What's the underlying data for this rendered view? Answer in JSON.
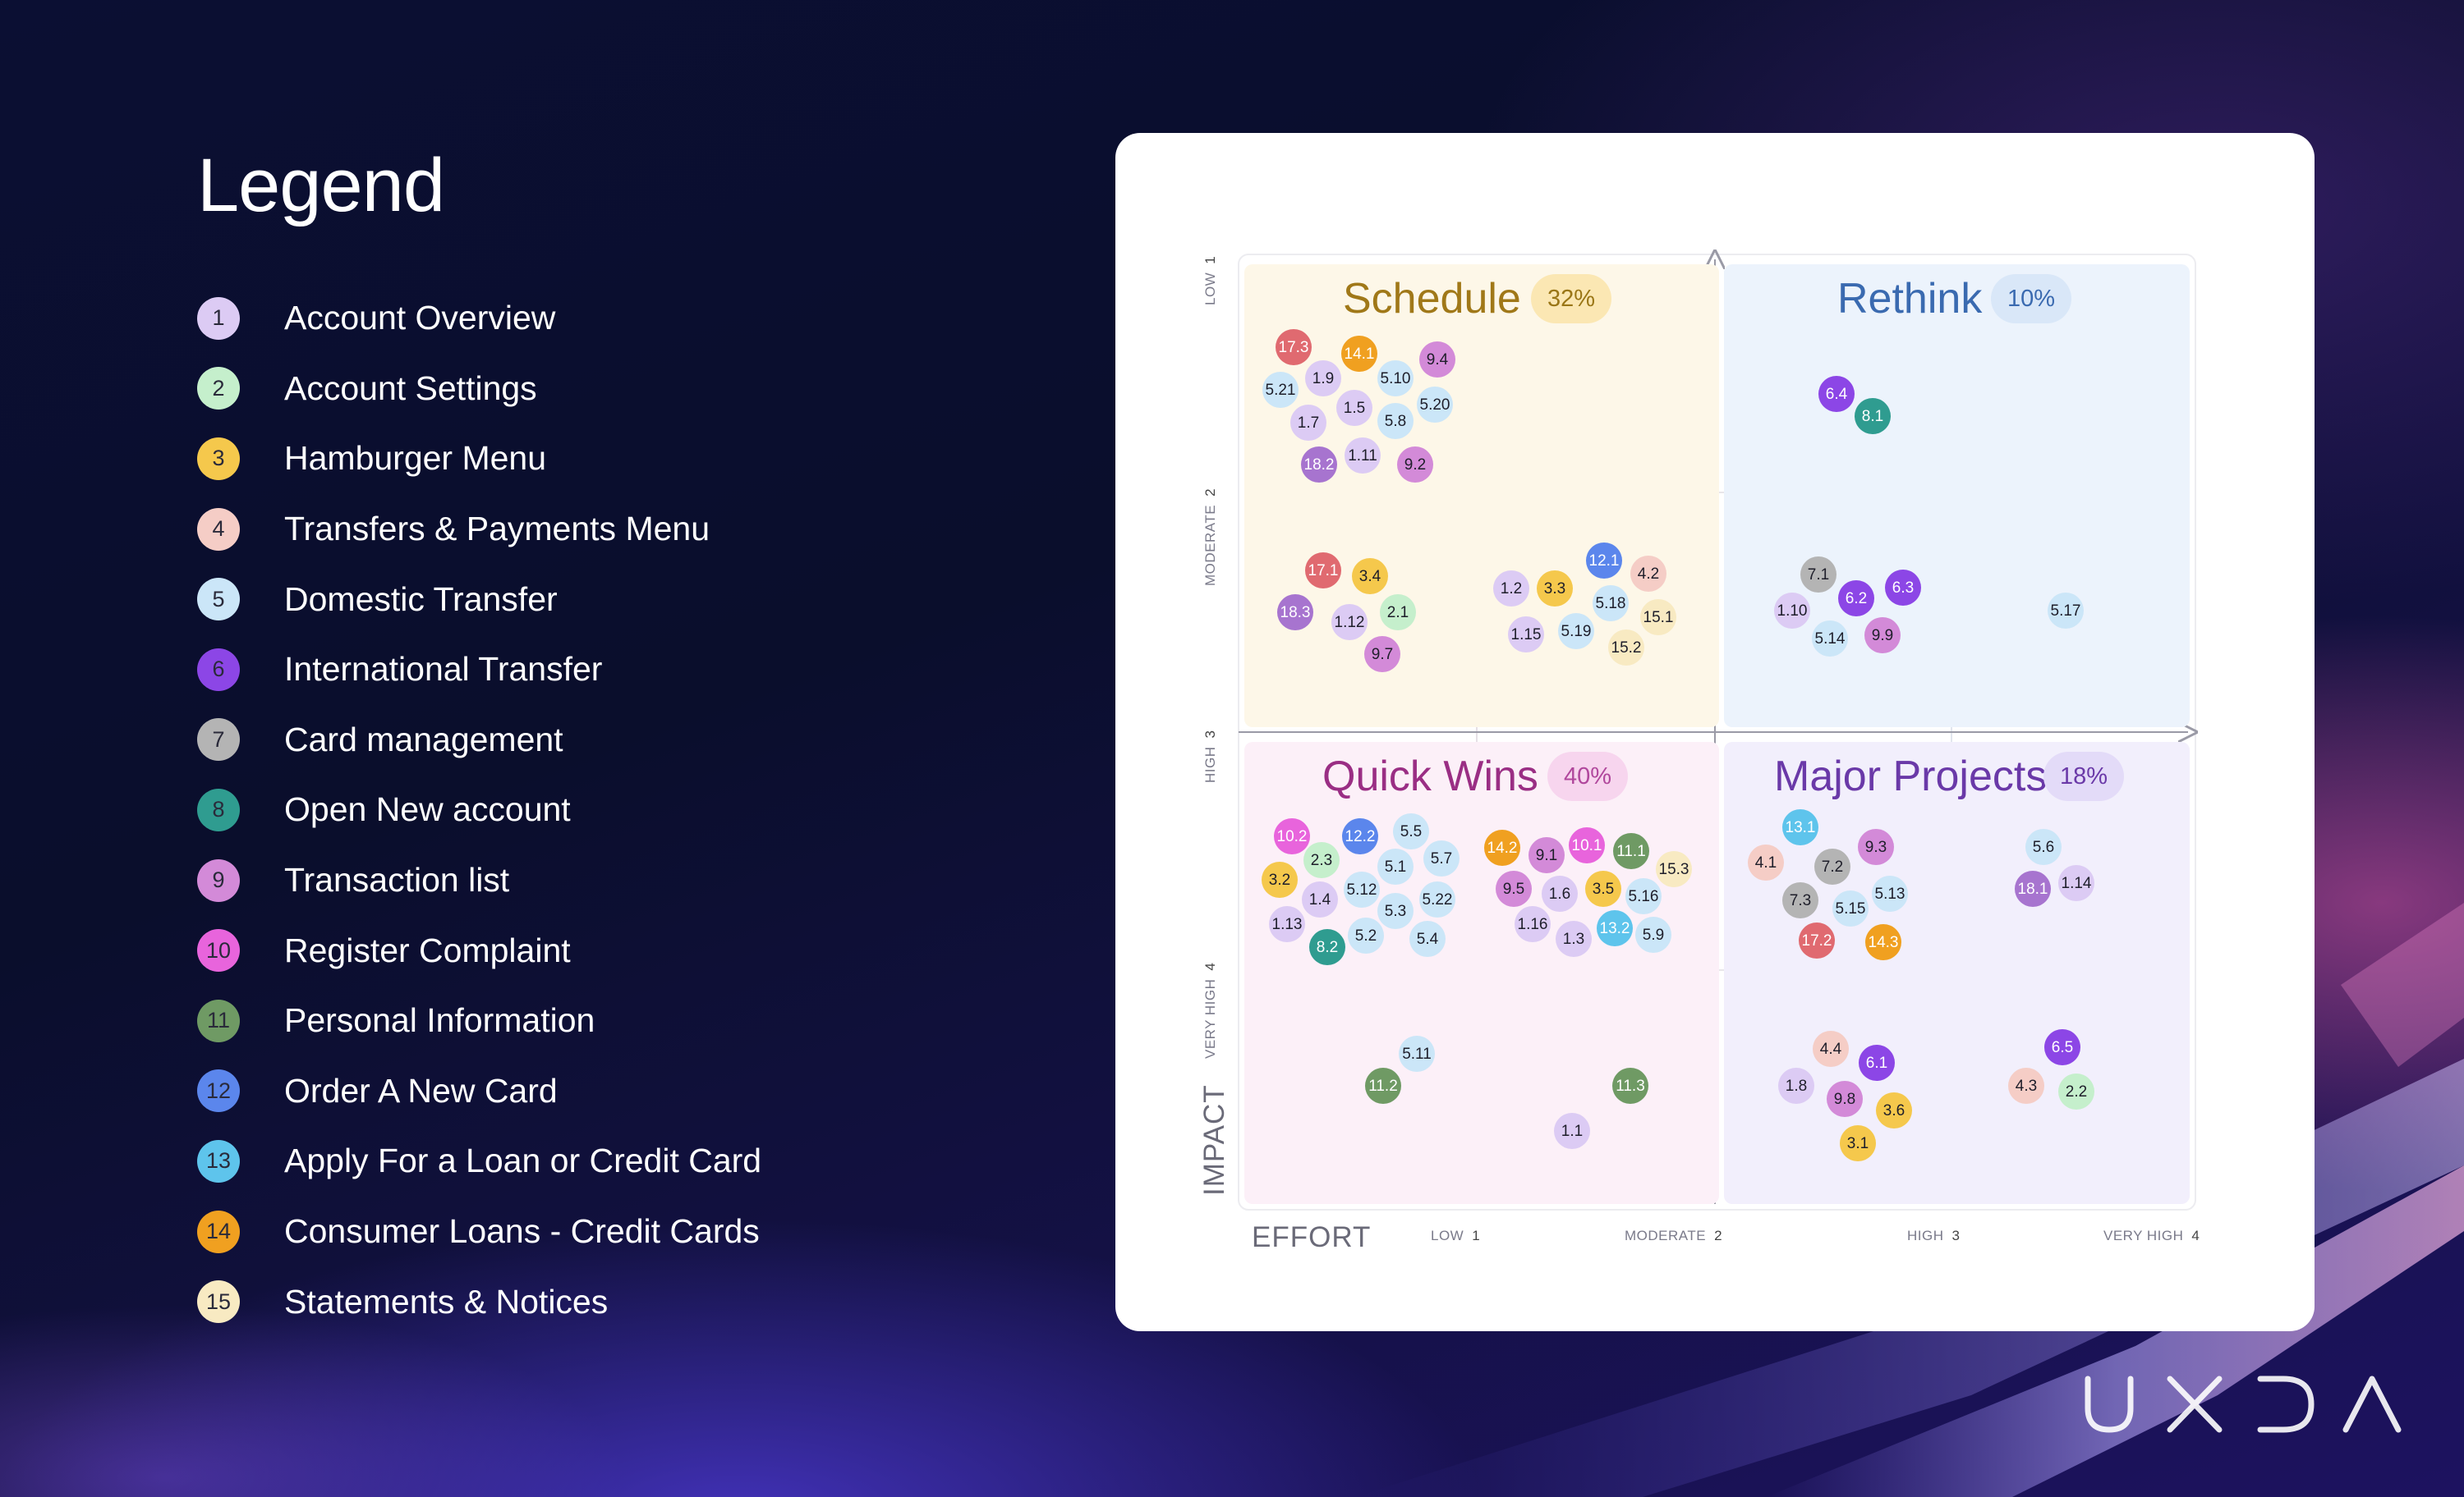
{
  "legend": {
    "title": "Legend",
    "items": [
      {
        "num": "1",
        "label": "Account Overview",
        "color": "#dccbf4"
      },
      {
        "num": "2",
        "label": "Account Settings",
        "color": "#c5efcc"
      },
      {
        "num": "3",
        "label": "Hamburger Menu",
        "color": "#f5c84c"
      },
      {
        "num": "4",
        "label": "Transfers & Payments Menu",
        "color": "#f5cdc6"
      },
      {
        "num": "5",
        "label": "Domestic Transfer",
        "color": "#cbe6f8"
      },
      {
        "num": "6",
        "label": "International Transfer",
        "color": "#8c46e6"
      },
      {
        "num": "7",
        "label": "Card management",
        "color": "#b4b4b4"
      },
      {
        "num": "8",
        "label": "Open New account",
        "color": "#2f9c90"
      },
      {
        "num": "9",
        "label": "Transaction list",
        "color": "#d38ad8"
      },
      {
        "num": "10",
        "label": "Register Complaint",
        "color": "#e864dc"
      },
      {
        "num": "11",
        "label": "Personal Information",
        "color": "#6f9a64"
      },
      {
        "num": "12",
        "label": "Order A New Card",
        "color": "#5b86ec"
      },
      {
        "num": "13",
        "label": "Apply For a Loan or Credit Card",
        "color": "#5ec4ec"
      },
      {
        "num": "14",
        "label": "Consumer Loans - Credit Cards",
        "color": "#f0a020"
      },
      {
        "num": "15",
        "label": "Statements & Notices",
        "color": "#f8eac2"
      }
    ]
  },
  "matrix": {
    "quadrants": {
      "schedule": {
        "title": "Schedule",
        "pct": "32%"
      },
      "rethink": {
        "title": "Rethink",
        "pct": "10%"
      },
      "quick_wins": {
        "title": "Quick Wins",
        "pct": "40%"
      },
      "major_projects": {
        "title": "Major Projects",
        "pct": "18%"
      }
    },
    "x_axis": {
      "title": "EFFORT",
      "ticks": [
        {
          "label": "LOW",
          "num": "1"
        },
        {
          "label": "MODERATE",
          "num": "2"
        },
        {
          "label": "HIGH",
          "num": "3"
        },
        {
          "label": "VERY HIGH",
          "num": "4"
        }
      ]
    },
    "y_axis": {
      "title": "IMPACT",
      "ticks": [
        {
          "label": "LOW",
          "num": "1"
        },
        {
          "label": "MODERATE",
          "num": "2"
        },
        {
          "label": "HIGH",
          "num": "3"
        },
        {
          "label": "VERY HIGH",
          "num": "4"
        }
      ]
    },
    "items": {
      "schedule_a": [
        "17.3",
        "14.1",
        "9.4",
        "5.21",
        "1.9",
        "5.10",
        "1.5",
        "5.20",
        "1.7",
        "5.8",
        "1.11",
        "18.2",
        "9.2"
      ],
      "schedule_b": [
        "17.1",
        "3.4",
        "18.3",
        "1.12",
        "2.1",
        "9.7"
      ],
      "schedule_c": [
        "12.1",
        "4.2",
        "1.2",
        "3.3",
        "5.18",
        "15.1",
        "1.15",
        "5.19",
        "15.2"
      ],
      "rethink_a": [
        "6.4",
        "8.1"
      ],
      "rethink_b": [
        "7.1",
        "6.3",
        "1.10",
        "6.2",
        "5.14",
        "9.9"
      ],
      "rethink_c": [
        "5.17"
      ],
      "quick_a": [
        "10.2",
        "12.2",
        "5.5",
        "2.3",
        "5.1",
        "5.7",
        "3.2",
        "5.12",
        "1.4",
        "5.22",
        "5.3",
        "1.13",
        "5.2",
        "5.4",
        "8.2"
      ],
      "quick_b": [
        "14.2",
        "9.1",
        "10.1",
        "11.1",
        "15.3",
        "9.5",
        "1.6",
        "3.5",
        "5.16",
        "1.16",
        "1.3",
        "13.2",
        "5.9"
      ],
      "quick_c": [
        "5.11",
        "11.2"
      ],
      "quick_d": [
        "11.3",
        "1.1"
      ],
      "major_a": [
        "13.1",
        "9.3",
        "4.1",
        "7.2",
        "7.3",
        "5.15",
        "5.13",
        "17.2",
        "14.3"
      ],
      "major_b": [
        "5.6",
        "18.1",
        "1.14"
      ],
      "major_c": [
        "4.4",
        "6.1",
        "1.8",
        "9.8",
        "3.6",
        "3.1"
      ],
      "major_d": [
        "6.5",
        "4.3",
        "2.2"
      ]
    }
  },
  "brand": {
    "logo_text": "UXDA"
  }
}
